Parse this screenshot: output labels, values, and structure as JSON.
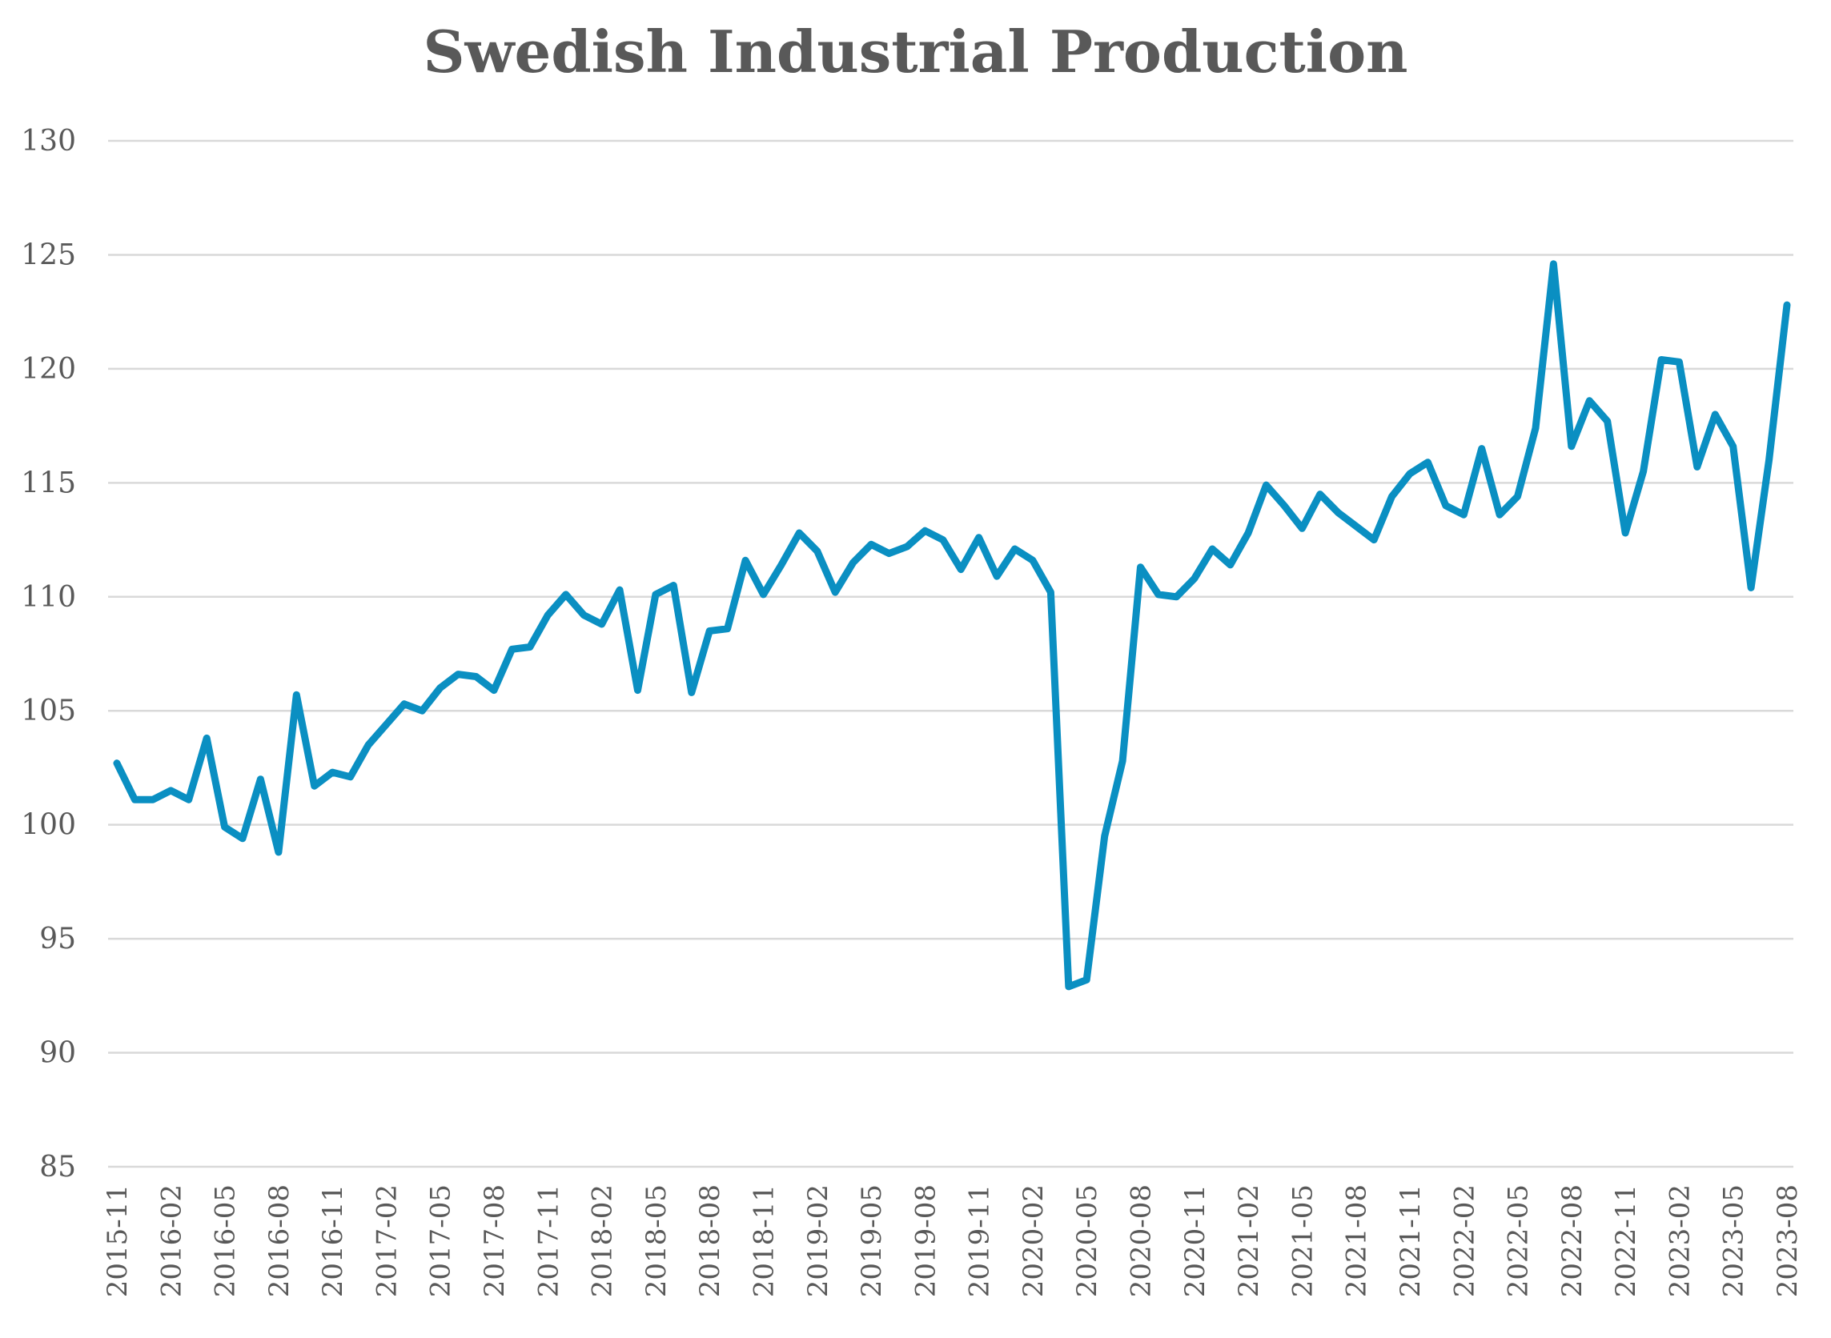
{
  "chart_data": {
    "type": "line",
    "title": "Swedish Industrial Production",
    "xlabel": "",
    "ylabel": "",
    "ylim": [
      85,
      130
    ],
    "yticks": [
      85,
      90,
      95,
      100,
      105,
      110,
      115,
      120,
      125,
      130
    ],
    "grid": true,
    "legend": "none",
    "x": [
      "2015-11",
      "2015-12",
      "2016-01",
      "2016-02",
      "2016-03",
      "2016-04",
      "2016-05",
      "2016-06",
      "2016-07",
      "2016-08",
      "2016-09",
      "2016-10",
      "2016-11",
      "2016-12",
      "2017-01",
      "2017-02",
      "2017-03",
      "2017-04",
      "2017-05",
      "2017-06",
      "2017-07",
      "2017-08",
      "2017-09",
      "2017-10",
      "2017-11",
      "2017-12",
      "2018-01",
      "2018-02",
      "2018-03",
      "2018-04",
      "2018-05",
      "2018-06",
      "2018-07",
      "2018-08",
      "2018-09",
      "2018-10",
      "2018-11",
      "2018-12",
      "2019-01",
      "2019-02",
      "2019-03",
      "2019-04",
      "2019-05",
      "2019-06",
      "2019-07",
      "2019-08",
      "2019-09",
      "2019-10",
      "2019-11",
      "2019-12",
      "2020-01",
      "2020-02",
      "2020-03",
      "2020-04",
      "2020-05",
      "2020-06",
      "2020-07",
      "2020-08",
      "2020-09",
      "2020-10",
      "2020-11",
      "2020-12",
      "2021-01",
      "2021-02",
      "2021-03",
      "2021-04",
      "2021-05",
      "2021-06",
      "2021-07",
      "2021-08",
      "2021-09",
      "2021-10",
      "2021-11",
      "2021-12",
      "2022-01",
      "2022-02",
      "2022-03",
      "2022-04",
      "2022-05",
      "2022-06",
      "2022-07",
      "2022-08",
      "2022-09",
      "2022-10",
      "2022-11",
      "2022-12",
      "2023-01",
      "2023-02",
      "2023-03",
      "2023-04",
      "2023-05",
      "2023-06",
      "2023-07",
      "2023-08"
    ],
    "xtick_labels": [
      "2015-11",
      "2016-02",
      "2016-05",
      "2016-08",
      "2016-11",
      "2017-02",
      "2017-05",
      "2017-08",
      "2017-11",
      "2018-02",
      "2018-05",
      "2018-08",
      "2018-11",
      "2019-02",
      "2019-05",
      "2019-08",
      "2019-11",
      "2020-02",
      "2020-05",
      "2020-08",
      "2020-11",
      "2021-02",
      "2021-05",
      "2021-08",
      "2021-11",
      "2022-02",
      "2022-05",
      "2022-08",
      "2022-11",
      "2023-02",
      "2023-05",
      "2023-08"
    ],
    "series": [
      {
        "color": "#0a8fc2",
        "values": [
          102.7,
          101.1,
          101.1,
          101.5,
          101.1,
          103.8,
          99.9,
          99.4,
          102.0,
          98.8,
          105.7,
          101.7,
          102.3,
          102.1,
          103.5,
          104.4,
          105.3,
          105.0,
          106.0,
          106.6,
          106.5,
          105.9,
          107.7,
          107.8,
          109.2,
          110.1,
          109.2,
          108.8,
          110.3,
          105.9,
          110.1,
          110.5,
          105.8,
          108.5,
          108.6,
          111.6,
          110.1,
          111.4,
          112.8,
          112.0,
          110.2,
          111.5,
          112.3,
          111.9,
          112.2,
          112.9,
          112.5,
          111.2,
          112.6,
          110.9,
          112.1,
          111.6,
          110.2,
          92.9,
          93.2,
          99.5,
          102.8,
          111.3,
          110.1,
          110.0,
          110.8,
          112.1,
          111.4,
          112.8,
          114.9,
          114.0,
          113.0,
          114.5,
          113.7,
          113.1,
          112.5,
          114.4,
          115.4,
          115.9,
          114.0,
          113.6,
          116.5,
          113.6,
          114.4,
          117.4,
          124.6,
          116.6,
          118.6,
          117.7,
          112.8,
          115.5,
          120.4,
          120.3,
          115.7,
          118.0,
          116.6,
          110.4,
          116.0,
          122.8
        ]
      }
    ]
  }
}
